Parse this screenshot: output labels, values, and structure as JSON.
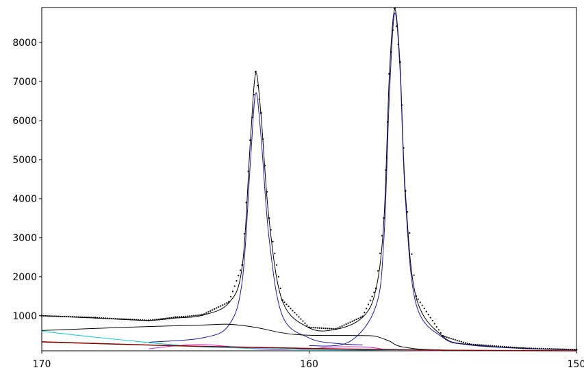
{
  "chart_data": {
    "type": "scatter",
    "xlabel": "",
    "ylabel": "",
    "x_reversed": true,
    "xlim": [
      170,
      150
    ],
    "ylim": [
      100,
      8900
    ],
    "grid": false,
    "legend": "none",
    "x_ticks": [
      170,
      160,
      150
    ],
    "x_tick_labels": [
      "170",
      "160",
      "150"
    ],
    "y_ticks": [
      1000,
      2000,
      3000,
      4000,
      5000,
      6000,
      7000,
      8000
    ],
    "y_tick_labels": [
      "1000",
      "2000",
      "3000",
      "4000",
      "5000",
      "6000",
      "7000",
      "8000"
    ],
    "peaks": [
      {
        "center": 162.0,
        "height": 7250,
        "fitted_component_height": 6700
      },
      {
        "center": 156.8,
        "height": 8880,
        "fitted_component_height": 8750
      }
    ],
    "series": [
      {
        "role": "measured data points",
        "color": "#000000",
        "style": "dots",
        "x": [
          170,
          168,
          166,
          165,
          164,
          163,
          162.5,
          162.2,
          162.0,
          161.8,
          161.5,
          161,
          160,
          159,
          158,
          157.5,
          157.2,
          157.0,
          156.8,
          156.6,
          156.4,
          156,
          155,
          154,
          152,
          150
        ],
        "y": [
          1000,
          950,
          880,
          960,
          1020,
          1350,
          2300,
          5500,
          7250,
          6200,
          3500,
          1400,
          700,
          660,
          980,
          1700,
          3500,
          7200,
          8880,
          7500,
          4200,
          1500,
          480,
          270,
          170,
          130
        ]
      },
      {
        "role": "envelope fit",
        "color": "#000000",
        "style": "line",
        "x": [
          170,
          168,
          166,
          165,
          164,
          163,
          162.5,
          162.2,
          162.0,
          161.8,
          161.5,
          161,
          160,
          159,
          158,
          157.5,
          157.2,
          157.0,
          156.8,
          156.6,
          156.4,
          156,
          155,
          154,
          152,
          150
        ],
        "y": [
          1000,
          940,
          880,
          940,
          1010,
          1330,
          2280,
          5450,
          7200,
          6150,
          3480,
          1380,
          690,
          650,
          960,
          1680,
          3480,
          7150,
          8850,
          7450,
          4180,
          1480,
          470,
          260,
          165,
          125
        ]
      },
      {
        "role": "peak component 1",
        "color": "#1a1aa0",
        "style": "line",
        "x": [
          166,
          164,
          163,
          162.5,
          162.2,
          162.0,
          161.8,
          161.5,
          161,
          160,
          159,
          158
        ],
        "y": [
          320,
          430,
          760,
          1900,
          4900,
          6700,
          5600,
          3000,
          1000,
          430,
          290,
          250
        ]
      },
      {
        "role": "peak component 2",
        "color": "#1a1aa0",
        "style": "line",
        "x": [
          160,
          158.5,
          157.5,
          157.2,
          157.0,
          156.8,
          156.6,
          156.4,
          156,
          155,
          154,
          152,
          150
        ],
        "y": [
          230,
          330,
          1250,
          3000,
          6600,
          8750,
          7300,
          4000,
          1300,
          440,
          250,
          160,
          120
        ]
      },
      {
        "role": "background component A",
        "color": "#000000",
        "style": "line",
        "x": [
          170,
          167,
          164,
          163,
          162,
          161,
          160,
          158,
          157.5,
          157,
          156.5,
          155,
          150
        ],
        "y": [
          620,
          700,
          760,
          780,
          700,
          560,
          500,
          490,
          470,
          350,
          200,
          120,
          100
        ]
      },
      {
        "role": "background component B",
        "color": "#d020d0",
        "style": "line",
        "x": [
          166,
          165,
          164,
          163,
          162,
          161,
          160,
          159,
          158,
          157.5,
          157,
          156,
          155
        ],
        "y": [
          150,
          230,
          260,
          210,
          150,
          130,
          150,
          200,
          200,
          170,
          120,
          105,
          100
        ]
      },
      {
        "role": "background component C",
        "color": "#00c8d8",
        "style": "line",
        "x": [
          170,
          168,
          166,
          165,
          164,
          162,
          160,
          155,
          150
        ],
        "y": [
          600,
          450,
          310,
          250,
          200,
          160,
          130,
          105,
          100
        ]
      },
      {
        "role": "baseline",
        "color": "#8b0000",
        "style": "line",
        "x": [
          170,
          165,
          160,
          155,
          150
        ],
        "y": [
          330,
          230,
          160,
          115,
          100
        ]
      }
    ]
  }
}
